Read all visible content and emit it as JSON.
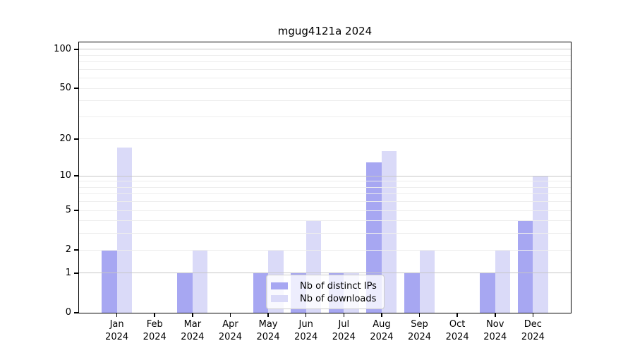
{
  "title": "mgug4121a 2024",
  "chart_data": {
    "type": "bar",
    "title": "mgug4121a 2024",
    "year_label": "2024",
    "categories": [
      "Jan",
      "Feb",
      "Mar",
      "Apr",
      "May",
      "Jun",
      "Jul",
      "Aug",
      "Sep",
      "Oct",
      "Nov",
      "Dec"
    ],
    "series": [
      {
        "name": "Nb of distinct IPs",
        "color": "#a7a7f2",
        "values": [
          2,
          0,
          1,
          0,
          1,
          1,
          1,
          13,
          1,
          0,
          1,
          4
        ]
      },
      {
        "name": "Nb of downloads",
        "color": "#dadaf8",
        "values": [
          17,
          0,
          2,
          0,
          2,
          4,
          1,
          16,
          2,
          0,
          2,
          10
        ]
      }
    ],
    "yscale": "log10(1+x)",
    "ylim": [
      0,
      100
    ],
    "yticks": [
      0,
      1,
      2,
      5,
      10,
      20,
      50,
      100
    ],
    "major_gridlines": [
      1,
      10,
      100
    ],
    "minor_gridlines": [
      2,
      3,
      4,
      5,
      6,
      7,
      8,
      9,
      20,
      30,
      40,
      50,
      60,
      70,
      80,
      90
    ],
    "grid": true,
    "legend_position": "lower center",
    "xlabel": "",
    "ylabel": ""
  },
  "colors": {
    "background": "#ffffff",
    "spine": "#000000",
    "major_grid": "#c6c6c6",
    "minor_grid": "#ededed",
    "ips_bar": "#a7a7f2",
    "downloads_bar": "#dadaf8",
    "legend_border": "#cccccc"
  }
}
